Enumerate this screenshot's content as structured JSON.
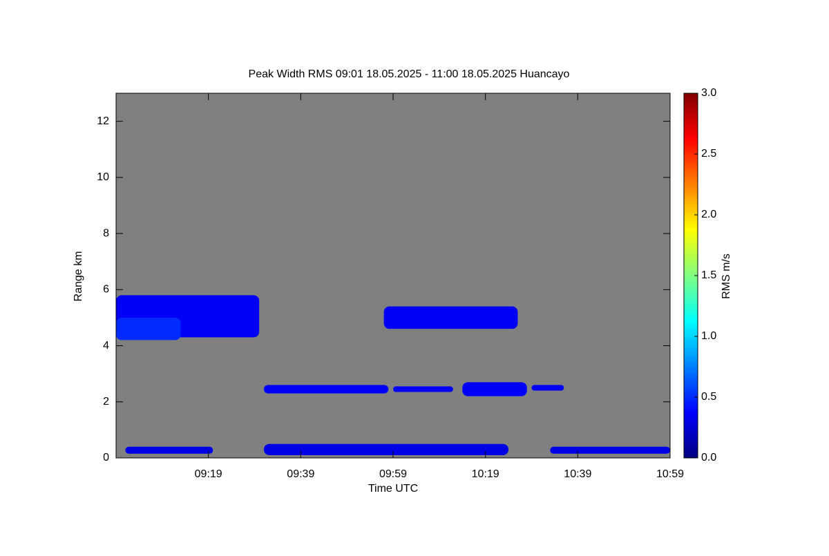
{
  "chart_data": {
    "type": "heatmap",
    "title": "Peak Width RMS   09:01 18.05.2025 - 11:00 18.05.2025 Huancayo",
    "x_label": "Time UTC",
    "y_label": "Range km",
    "colorbar_label": "RMS m/s",
    "xlim": [
      "08:59",
      "10:59"
    ],
    "xticks": [
      "09:19",
      "09:39",
      "09:59",
      "10:19",
      "10:39",
      "10:59"
    ],
    "ylim": [
      0,
      13
    ],
    "yticks": [
      0,
      2,
      4,
      6,
      8,
      10,
      12
    ],
    "clim": [
      0,
      3
    ],
    "cticks": [
      {
        "value": 0,
        "label": "0.0"
      },
      {
        "value": 0.5,
        "label": "0.5"
      },
      {
        "value": 1,
        "label": "1.0"
      },
      {
        "value": 1.5,
        "label": "1.5"
      },
      {
        "value": 2,
        "label": "2.0"
      },
      {
        "value": 2.5,
        "label": "2.5"
      },
      {
        "value": 3,
        "label": "3.0"
      }
    ],
    "background": "#808080",
    "patches": [
      {
        "x0": "08:59",
        "x1": "09:30",
        "y0": 4.3,
        "y1": 5.8,
        "value": 0.35
      },
      {
        "x0": "08:59",
        "x1": "09:13",
        "y0": 4.2,
        "y1": 5.0,
        "value": 0.5
      },
      {
        "x0": "09:57",
        "x1": "10:26",
        "y0": 4.6,
        "y1": 5.4,
        "value": 0.35
      },
      {
        "x0": "09:31",
        "x1": "09:58",
        "y0": 2.3,
        "y1": 2.6,
        "value": 0.35
      },
      {
        "x0": "09:59",
        "x1": "10:12",
        "y0": 2.35,
        "y1": 2.55,
        "value": 0.35
      },
      {
        "x0": "10:14",
        "x1": "10:28",
        "y0": 2.2,
        "y1": 2.7,
        "value": 0.35
      },
      {
        "x0": "10:29",
        "x1": "10:36",
        "y0": 2.4,
        "y1": 2.6,
        "value": 0.35
      },
      {
        "x0": "09:01",
        "x1": "09:20",
        "y0": 0.15,
        "y1": 0.4,
        "value": 0.3
      },
      {
        "x0": "09:31",
        "x1": "10:24",
        "y0": 0.1,
        "y1": 0.5,
        "value": 0.3
      },
      {
        "x0": "10:33",
        "x1": "10:59",
        "y0": 0.15,
        "y1": 0.4,
        "value": 0.3
      }
    ]
  }
}
